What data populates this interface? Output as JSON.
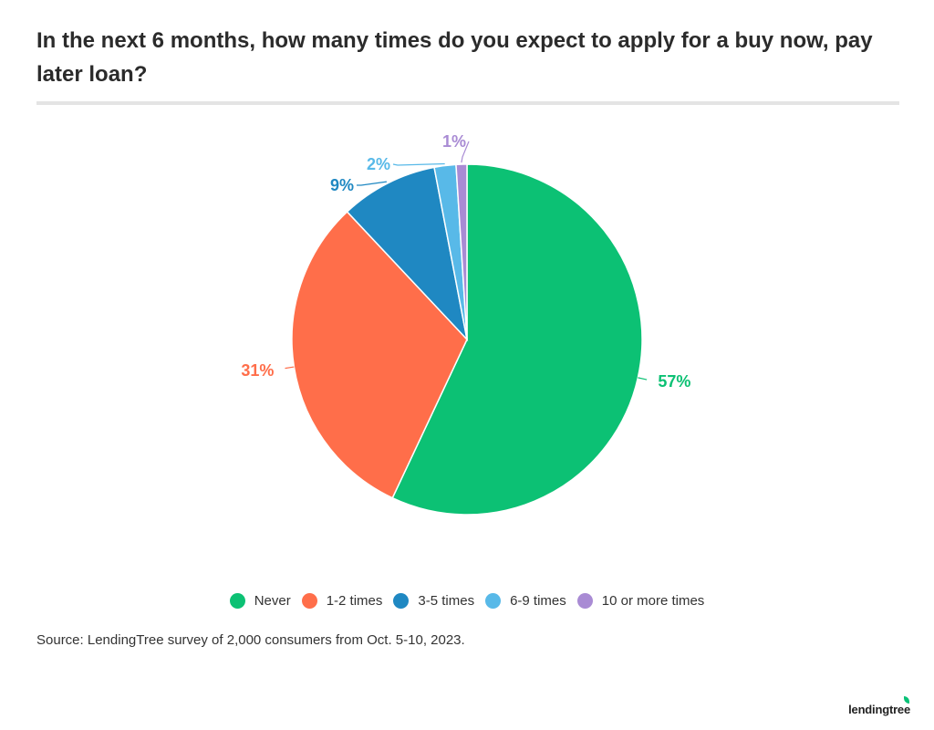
{
  "title": "In the next 6 months, how many times do you expect to apply for a buy now, pay later loan?",
  "source": "Source: LendingTree survey of 2,000 consumers from Oct. 5-10, 2023.",
  "brand": "lendingtree",
  "chart_data": {
    "type": "pie",
    "title": "In the next 6 months, how many times do you expect to apply for a buy now, pay later loan?",
    "categories": [
      "Never",
      "1-2 times",
      "3-5 times",
      "6-9 times",
      "10 or more times"
    ],
    "values": [
      57,
      31,
      9,
      2,
      1
    ],
    "labels": [
      "57%",
      "31%",
      "9%",
      "2%",
      "1%"
    ],
    "colors": [
      "#0cc174",
      "#ff6e4a",
      "#1f88c2",
      "#58b9e8",
      "#a98bd4"
    ],
    "legend_position": "bottom",
    "start": "top",
    "direction": "clockwise"
  }
}
